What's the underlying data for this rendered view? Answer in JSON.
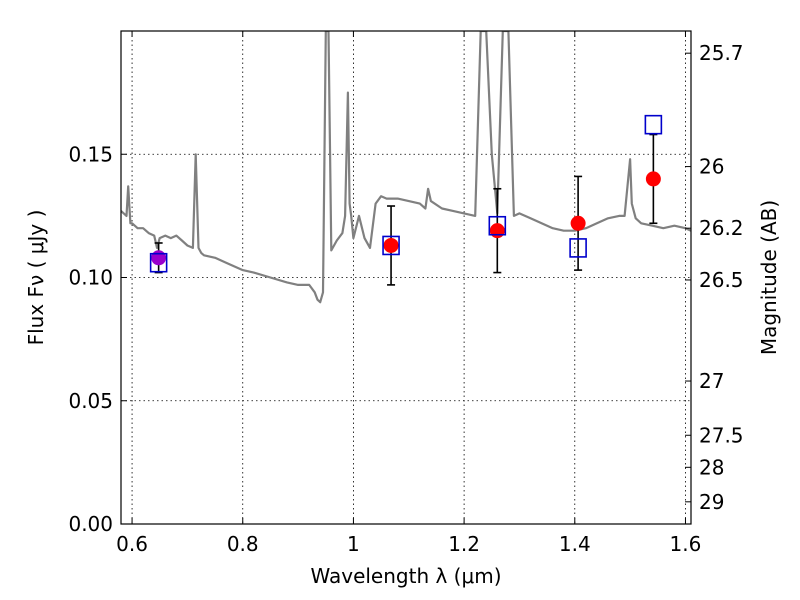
{
  "chart_data": {
    "type": "scatter",
    "xlabel": "Wavelength  λ (μm)",
    "ylabel": "Flux  Fν  ( μJy )",
    "y2label": "Magnitude (AB)",
    "xlim": [
      0.58,
      1.61
    ],
    "ylim": [
      0.0,
      0.2
    ],
    "x_ticks": [
      0.6,
      0.8,
      1.0,
      1.2,
      1.4,
      1.6
    ],
    "x_tick_labels": [
      "0.6",
      "0.8",
      "1",
      "1.2",
      "1.4",
      "1.6"
    ],
    "y_ticks": [
      0.0,
      0.05,
      0.1,
      0.15
    ],
    "y_tick_labels": [
      "0.00",
      "0.05",
      "0.10",
      "0.15"
    ],
    "y2_ticks": [
      {
        "label": "25.7",
        "flux": 0.191
      },
      {
        "label": "26",
        "flux": 0.145
      },
      {
        "label": "26.2",
        "flux": 0.12
      },
      {
        "label": "26.5",
        "flux": 0.099
      },
      {
        "label": "27",
        "flux": 0.058
      },
      {
        "label": "27.5",
        "flux": 0.036
      },
      {
        "label": "28",
        "flux": 0.023
      },
      {
        "label": "29",
        "flux": 0.009
      }
    ],
    "grid": true,
    "colors": {
      "model": "#808080",
      "observed": "#ff0000",
      "model_photometry": "#0000cc",
      "overlap_point": "#9900cc",
      "errorbar": "#000000"
    },
    "series": [
      {
        "kind": "line",
        "x": [
          0.58,
          0.59,
          0.593,
          0.597,
          0.6,
          0.61,
          0.62,
          0.63,
          0.64,
          0.645,
          0.65,
          0.66,
          0.67,
          0.68,
          0.69,
          0.7,
          0.71,
          0.715,
          0.72,
          0.725,
          0.73,
          0.75,
          0.77,
          0.8,
          0.82,
          0.85,
          0.88,
          0.9,
          0.92,
          0.93,
          0.935,
          0.94,
          0.945,
          0.95,
          0.952,
          0.955,
          0.96,
          0.97,
          0.98,
          0.985,
          0.99,
          0.993,
          0.996,
          1.0,
          1.01,
          1.02,
          1.03,
          1.04,
          1.05,
          1.06,
          1.08,
          1.1,
          1.12,
          1.13,
          1.135,
          1.14,
          1.16,
          1.18,
          1.2,
          1.22,
          1.23,
          1.24,
          1.25,
          1.26,
          1.27,
          1.28,
          1.29,
          1.3,
          1.32,
          1.34,
          1.36,
          1.38,
          1.4,
          1.42,
          1.44,
          1.46,
          1.48,
          1.49,
          1.5,
          1.503,
          1.51,
          1.52,
          1.54,
          1.56,
          1.58,
          1.6,
          1.61
        ],
        "y": [
          0.127,
          0.125,
          0.137,
          0.122,
          0.122,
          0.12,
          0.12,
          0.118,
          0.117,
          0.112,
          0.116,
          0.117,
          0.116,
          0.117,
          0.115,
          0.113,
          0.112,
          0.15,
          0.112,
          0.11,
          0.109,
          0.108,
          0.106,
          0.103,
          0.102,
          0.1,
          0.098,
          0.097,
          0.097,
          0.094,
          0.091,
          0.09,
          0.094,
          0.2,
          0.2,
          0.2,
          0.111,
          0.115,
          0.118,
          0.125,
          0.175,
          0.13,
          0.125,
          0.116,
          0.125,
          0.116,
          0.112,
          0.13,
          0.133,
          0.132,
          0.132,
          0.131,
          0.13,
          0.128,
          0.136,
          0.131,
          0.128,
          0.127,
          0.126,
          0.125,
          0.2,
          0.2,
          0.15,
          0.126,
          0.2,
          0.2,
          0.125,
          0.126,
          0.124,
          0.122,
          0.12,
          0.119,
          0.119,
          0.12,
          0.122,
          0.124,
          0.125,
          0.125,
          0.148,
          0.13,
          0.124,
          0.122,
          0.121,
          0.12,
          0.121,
          0.12,
          0.119
        ]
      },
      {
        "kind": "errorbar",
        "x": [
          0.648,
          1.068,
          1.26,
          1.406,
          1.542
        ],
        "y": [
          0.108,
          0.113,
          0.119,
          0.122,
          0.14
        ],
        "err": [
          0.006,
          0.016,
          0.017,
          0.019,
          0.018
        ]
      },
      {
        "kind": "square",
        "x": [
          0.648,
          1.068,
          1.26,
          1.406,
          1.542
        ],
        "y": [
          0.106,
          0.113,
          0.121,
          0.112,
          0.162
        ]
      }
    ]
  }
}
